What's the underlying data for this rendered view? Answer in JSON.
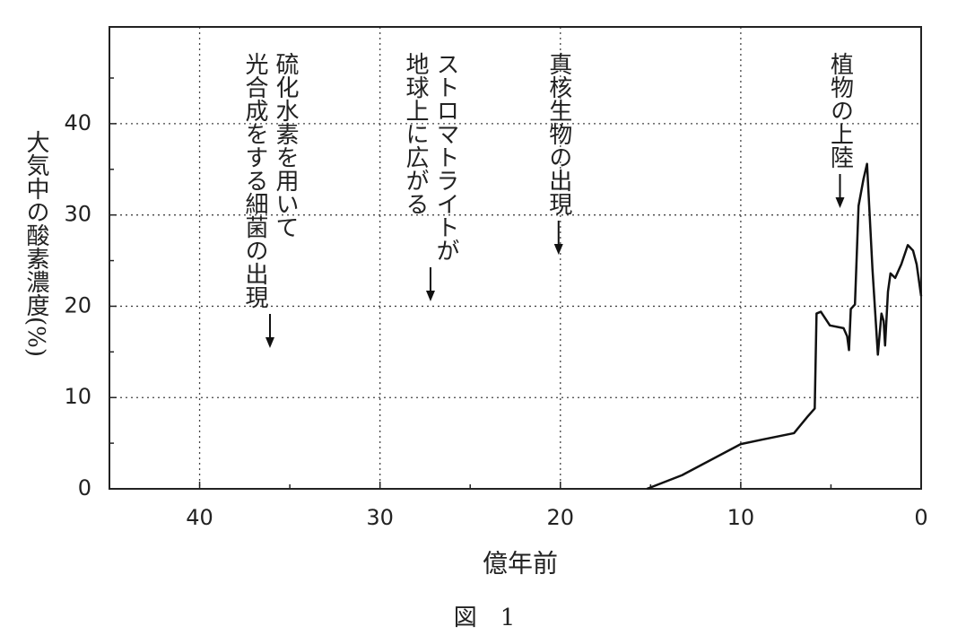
{
  "chart_data": {
    "type": "line",
    "caption": "図　1",
    "x_label": "億年前",
    "y_label": "大気中の酸素濃度(%)",
    "xlim": [
      45,
      0
    ],
    "xticks": [
      40,
      30,
      20,
      10,
      0
    ],
    "x_minor_ticks": [
      35,
      25,
      15,
      5
    ],
    "ylim": [
      0,
      50.6
    ],
    "yticks": [
      0,
      10,
      20,
      30,
      40
    ],
    "y_minor_ticks": [
      5,
      15,
      25,
      35,
      45
    ],
    "grid": true,
    "series": [
      {
        "color": "#111111",
        "x": [
          15.2,
          13.25,
          10.0,
          8.8,
          7.05,
          6.3,
          5.9,
          5.8,
          5.56,
          5.06,
          4.3,
          4.1,
          4.0,
          3.9,
          3.67,
          3.47,
          3.2,
          3.0,
          2.7,
          2.4,
          2.2,
          2.08,
          2.0,
          1.84,
          1.7,
          1.44,
          1.1,
          0.74,
          0.45,
          0.25,
          0
        ],
        "values": [
          0,
          1.5,
          4.9,
          5.4,
          6.1,
          7.9,
          8.8,
          19.2,
          19.4,
          17.9,
          17.6,
          16.7,
          15.2,
          19.7,
          20.2,
          31.0,
          33.9,
          35.6,
          24.1,
          14.7,
          19.2,
          18.4,
          15.7,
          21.6,
          23.6,
          23.1,
          24.6,
          26.7,
          26.1,
          24.6,
          21.1
        ]
      }
    ],
    "annotations": [
      {
        "lines": [
          "硫化水素を用いて",
          "光合成をする細菌の出現"
        ],
        "x": 36.1
      },
      {
        "lines": [
          "ストロマトライトが",
          "地球上に広がる"
        ],
        "x": 27.2
      },
      {
        "lines": [
          "真核生物の出現"
        ],
        "x": 20.1
      },
      {
        "lines": [
          "植物の上陸"
        ],
        "x": 4.5
      }
    ]
  }
}
